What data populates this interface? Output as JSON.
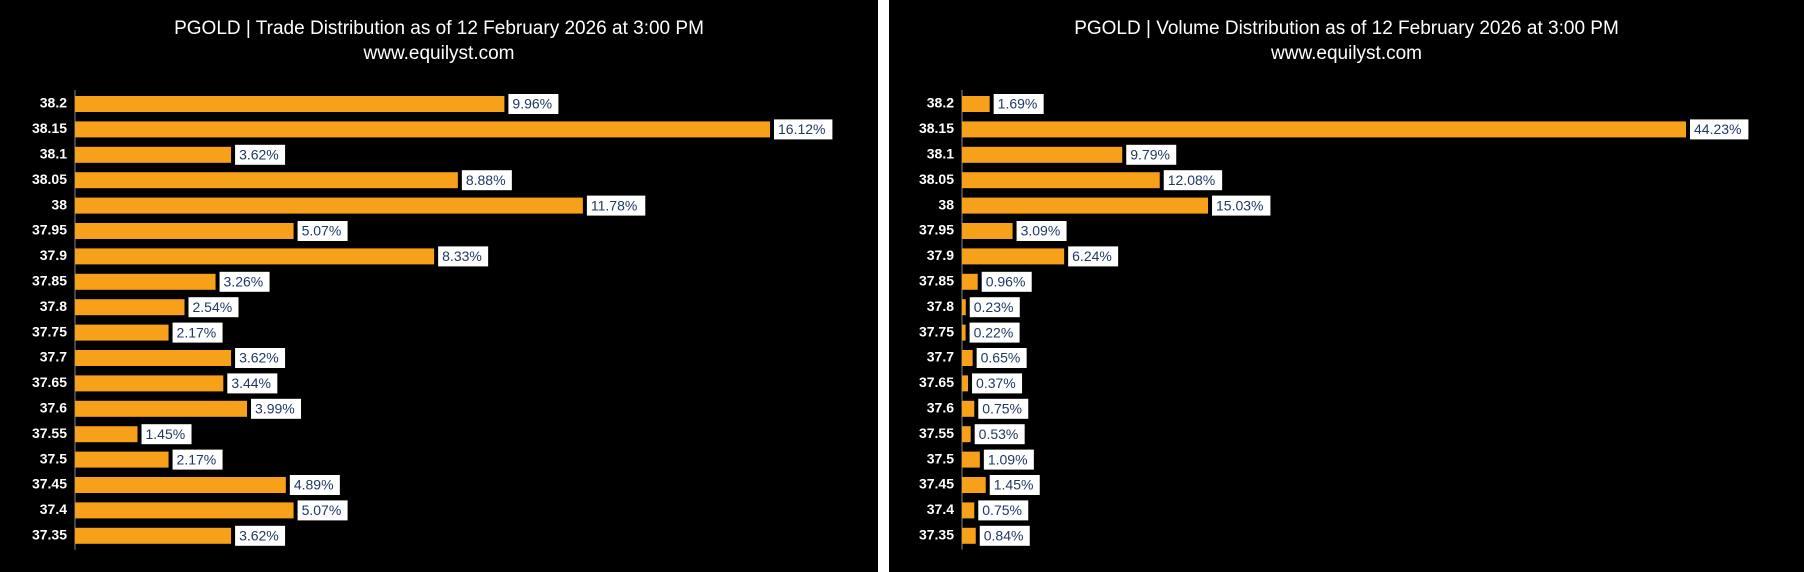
{
  "chart_data": [
    {
      "type": "bar",
      "orientation": "horizontal",
      "title": "PGOLD | Trade Distribution as of 12 February 2026 at 3:00 PM",
      "subtitle": "www.equilyst.com",
      "categories": [
        "38.2",
        "38.15",
        "38.1",
        "38.05",
        "38",
        "37.95",
        "37.9",
        "37.85",
        "37.8",
        "37.75",
        "37.7",
        "37.65",
        "37.6",
        "37.55",
        "37.5",
        "37.45",
        "37.4",
        "37.35"
      ],
      "values": [
        9.96,
        16.12,
        3.62,
        8.88,
        11.78,
        5.07,
        8.33,
        3.26,
        2.54,
        2.17,
        3.62,
        3.44,
        3.99,
        1.45,
        2.17,
        4.89,
        5.07,
        3.62
      ],
      "value_labels": [
        "9.96%",
        "16.12%",
        "3.62%",
        "8.88%",
        "11.78%",
        "5.07%",
        "8.33%",
        "3.26%",
        "2.54%",
        "2.17%",
        "3.62%",
        "3.44%",
        "3.99%",
        "1.45%",
        "2.17%",
        "4.89%",
        "5.07%",
        "3.62%"
      ],
      "color": "#f7a11a"
    },
    {
      "type": "bar",
      "orientation": "horizontal",
      "title": "PGOLD | Volume Distribution as of 12 February 2026 at 3:00 PM",
      "subtitle": "www.equilyst.com",
      "categories": [
        "38.2",
        "38.15",
        "38.1",
        "38.05",
        "38",
        "37.95",
        "37.9",
        "37.85",
        "37.8",
        "37.75",
        "37.7",
        "37.65",
        "37.6",
        "37.55",
        "37.5",
        "37.45",
        "37.4",
        "37.35"
      ],
      "values": [
        1.69,
        44.23,
        9.79,
        12.08,
        15.03,
        3.09,
        6.24,
        0.96,
        0.23,
        0.22,
        0.65,
        0.37,
        0.75,
        0.53,
        1.09,
        1.45,
        0.75,
        0.84
      ],
      "value_labels": [
        "1.69%",
        "44.23%",
        "9.79%",
        "12.08%",
        "15.03%",
        "3.09%",
        "6.24%",
        "0.96%",
        "0.23%",
        "0.22%",
        "0.65%",
        "0.37%",
        "0.75%",
        "0.53%",
        "1.09%",
        "1.45%",
        "0.75%",
        "0.84%"
      ],
      "color": "#f7a11a"
    }
  ]
}
